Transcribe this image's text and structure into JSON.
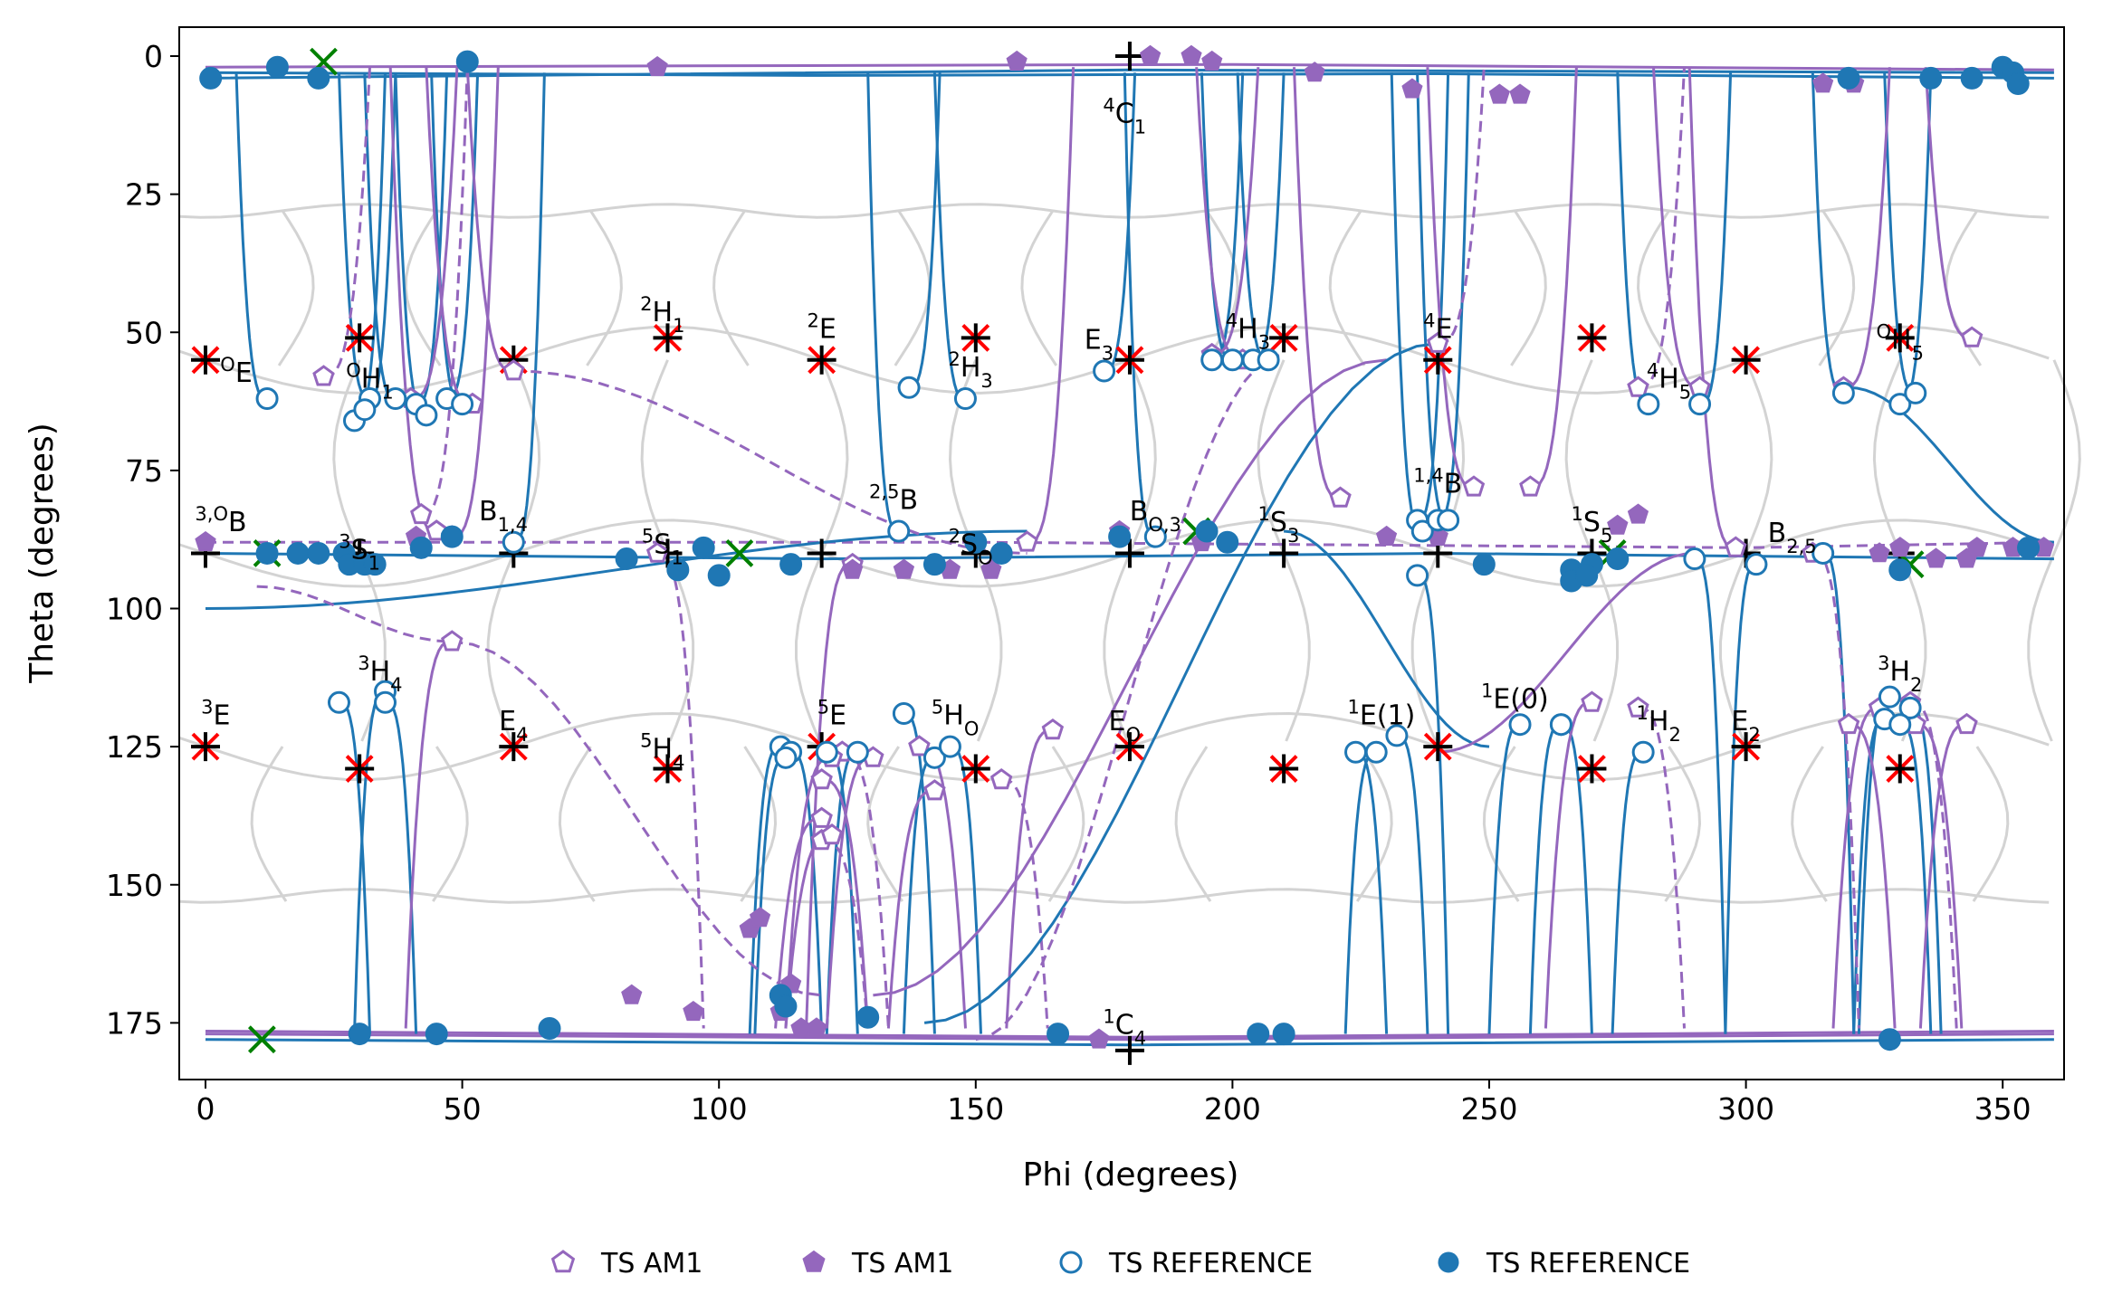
{
  "chart_data": {
    "type": "scatter",
    "xlabel": "Phi (degrees)",
    "ylabel": "Theta (degrees)",
    "xlim": [
      -5,
      362
    ],
    "ylim": [
      185,
      -5
    ],
    "xticks": [
      0,
      50,
      100,
      150,
      200,
      250,
      300,
      350
    ],
    "yticks": [
      0,
      25,
      50,
      75,
      100,
      125,
      150,
      175
    ],
    "grid": false,
    "legend_position": "bottom-center",
    "colors": {
      "am1": "#9467bd",
      "reference": "#1f77b4",
      "grid_mesh": "#d3d3d3",
      "canonical_plus": "#000000",
      "canonical_star": "#ff0000",
      "local_min": "#008000"
    },
    "legend": [
      {
        "label": "TS AM1",
        "marker": "open-pentagon",
        "color": "#9467bd"
      },
      {
        "label": "TS AM1",
        "marker": "filled-pentagon",
        "color": "#9467bd"
      },
      {
        "label": "TS REFERENCE",
        "marker": "open-circle",
        "color": "#1f77b4"
      },
      {
        "label": "TS REFERENCE",
        "marker": "filled-circle",
        "color": "#1f77b4"
      }
    ],
    "pucker_labels": [
      {
        "sup": "4",
        "base": "C",
        "sub": "1",
        "phi": 179,
        "theta": 12
      },
      {
        "sup": "O",
        "base": "E",
        "sub": "",
        "phi": 6,
        "theta": 59
      },
      {
        "sup": "O",
        "base": "H",
        "sub": "1",
        "phi": 32,
        "theta": 60
      },
      {
        "sup": "2",
        "base": "H",
        "sub": "1",
        "phi": 89,
        "theta": 48
      },
      {
        "sup": "2",
        "base": "E",
        "sub": "",
        "phi": 120,
        "theta": 51
      },
      {
        "sup": "2",
        "base": "H",
        "sub": "3",
        "phi": 149,
        "theta": 58
      },
      {
        "sup": "",
        "base": "E",
        "sub": "3",
        "phi": 174,
        "theta": 53
      },
      {
        "sup": "4",
        "base": "H",
        "sub": "3",
        "phi": 203,
        "theta": 51
      },
      {
        "sup": "4",
        "base": "E",
        "sub": "",
        "phi": 240,
        "theta": 51
      },
      {
        "sup": "4",
        "base": "H",
        "sub": "5",
        "phi": 285,
        "theta": 60
      },
      {
        "sup": "O",
        "base": "H",
        "sub": "5",
        "phi": 330,
        "theta": 53
      },
      {
        "sup": "3,O",
        "base": "B",
        "sub": "",
        "phi": 3,
        "theta": 86
      },
      {
        "sup": "3",
        "base": "S",
        "sub": "1",
        "phi": 30,
        "theta": 91
      },
      {
        "sup": "",
        "base": "B",
        "sub": "1,4",
        "phi": 58,
        "theta": 84
      },
      {
        "sup": "5",
        "base": "S",
        "sub": "1",
        "phi": 89,
        "theta": 90
      },
      {
        "sup": "2,5",
        "base": "B",
        "sub": "",
        "phi": 134,
        "theta": 82
      },
      {
        "sup": "2",
        "base": "S",
        "sub": "O",
        "phi": 149,
        "theta": 90
      },
      {
        "sup": "",
        "base": "B",
        "sub": "O,3",
        "phi": 185,
        "theta": 84
      },
      {
        "sup": "1",
        "base": "S",
        "sub": "3",
        "phi": 209,
        "theta": 86
      },
      {
        "sup": "1,4",
        "base": "B",
        "sub": "",
        "phi": 240,
        "theta": 79
      },
      {
        "sup": "1",
        "base": "S",
        "sub": "5",
        "phi": 270,
        "theta": 86
      },
      {
        "sup": "",
        "base": "B",
        "sub": "2,5",
        "phi": 309,
        "theta": 88
      },
      {
        "sup": "3",
        "base": "H",
        "sub": "4",
        "phi": 34,
        "theta": 113
      },
      {
        "sup": "3",
        "base": "E",
        "sub": "",
        "phi": 2,
        "theta": 121
      },
      {
        "sup": "",
        "base": "E",
        "sub": "4",
        "phi": 60,
        "theta": 122
      },
      {
        "sup": "5",
        "base": "H",
        "sub": "4",
        "phi": 89,
        "theta": 127
      },
      {
        "sup": "5",
        "base": "E",
        "sub": "",
        "phi": 122,
        "theta": 121
      },
      {
        "sup": "5",
        "base": "H",
        "sub": "O",
        "phi": 146,
        "theta": 121
      },
      {
        "sup": "",
        "base": "E",
        "sub": "O",
        "phi": 179,
        "theta": 122
      },
      {
        "sup": "1",
        "base": "E(1)",
        "sub": "",
        "phi": 229,
        "theta": 121
      },
      {
        "sup": "1",
        "base": "E(0)",
        "sub": "",
        "phi": 255,
        "theta": 118
      },
      {
        "sup": "1",
        "base": "H",
        "sub": "2",
        "phi": 283,
        "theta": 122
      },
      {
        "sup": "",
        "base": "E",
        "sub": "2",
        "phi": 300,
        "theta": 122
      },
      {
        "sup": "3",
        "base": "H",
        "sub": "2",
        "phi": 330,
        "theta": 113
      },
      {
        "sup": "1",
        "base": "C",
        "sub": "4",
        "phi": 179,
        "theta": 177
      }
    ],
    "canonical_plus": [
      [
        180,
        0
      ],
      [
        180,
        180
      ],
      [
        0,
        90
      ],
      [
        30,
        90
      ],
      [
        60,
        90
      ],
      [
        90,
        90
      ],
      [
        120,
        90
      ],
      [
        150,
        90
      ],
      [
        180,
        90
      ],
      [
        210,
        90
      ],
      [
        240,
        90
      ],
      [
        270,
        90
      ],
      [
        300,
        90
      ],
      [
        330,
        90
      ]
    ],
    "canonical_star": [
      [
        0,
        55
      ],
      [
        60,
        55
      ],
      [
        120,
        55
      ],
      [
        180,
        55
      ],
      [
        240,
        55
      ],
      [
        300,
        55
      ],
      [
        30,
        51
      ],
      [
        90,
        51
      ],
      [
        150,
        51
      ],
      [
        210,
        51
      ],
      [
        270,
        51
      ],
      [
        330,
        51
      ],
      [
        0,
        125
      ],
      [
        60,
        125
      ],
      [
        120,
        125
      ],
      [
        180,
        125
      ],
      [
        240,
        125
      ],
      [
        300,
        125
      ],
      [
        30,
        129
      ],
      [
        90,
        129
      ],
      [
        150,
        129
      ],
      [
        210,
        129
      ],
      [
        270,
        129
      ],
      [
        330,
        129
      ]
    ],
    "local_min": [
      [
        23,
        1
      ],
      [
        12,
        90
      ],
      [
        104,
        90
      ],
      [
        11,
        178
      ],
      [
        193,
        86
      ],
      [
        274,
        90
      ],
      [
        332,
        92
      ]
    ],
    "series": [
      {
        "name": "TS AM1",
        "marker": "open-pentagon",
        "points": [
          [
            23,
            58
          ],
          [
            60,
            57
          ],
          [
            40,
            62
          ],
          [
            52,
            63
          ],
          [
            42,
            83
          ],
          [
            45,
            86
          ],
          [
            48,
            87
          ],
          [
            48,
            106
          ],
          [
            88,
            90
          ],
          [
            126,
            92
          ],
          [
            160,
            88
          ],
          [
            165,
            122
          ],
          [
            155,
            131
          ],
          [
            142,
            133
          ],
          [
            139,
            125
          ],
          [
            130,
            127
          ],
          [
            124,
            126
          ],
          [
            122,
            127
          ],
          [
            120,
            131
          ],
          [
            120,
            138
          ],
          [
            120,
            142
          ],
          [
            122,
            141
          ],
          [
            196,
            54
          ],
          [
            202,
            55
          ],
          [
            240,
            52
          ],
          [
            247,
            78
          ],
          [
            258,
            78
          ],
          [
            221,
            80
          ],
          [
            279,
            60
          ],
          [
            291,
            60
          ],
          [
            319,
            60
          ],
          [
            344,
            51
          ],
          [
            279,
            118
          ],
          [
            270,
            117
          ],
          [
            320,
            121
          ],
          [
            326,
            118
          ],
          [
            332,
            117
          ],
          [
            343,
            121
          ],
          [
            333,
            121
          ],
          [
            298,
            89
          ],
          [
            313,
            90
          ]
        ]
      },
      {
        "name": "TS AM1",
        "marker": "filled-pentagon",
        "points": [
          [
            0,
            88
          ],
          [
            41,
            87
          ],
          [
            178,
            86
          ],
          [
            194,
            88
          ],
          [
            275,
            85
          ],
          [
            279,
            83
          ],
          [
            352,
            89
          ],
          [
            326,
            90
          ],
          [
            330,
            89
          ],
          [
            337,
            91
          ],
          [
            343,
            91
          ],
          [
            345,
            89
          ],
          [
            358,
            89
          ],
          [
            153,
            93
          ],
          [
            145,
            93
          ],
          [
            136,
            93
          ],
          [
            126,
            93
          ],
          [
            230,
            87
          ],
          [
            240,
            87
          ],
          [
            106,
            158
          ],
          [
            108,
            156
          ],
          [
            83,
            170
          ],
          [
            95,
            173
          ],
          [
            114,
            168
          ],
          [
            112,
            173
          ],
          [
            184,
            0
          ],
          [
            192,
            0
          ],
          [
            196,
            1
          ],
          [
            158,
            1
          ],
          [
            88,
            2
          ],
          [
            216,
            3
          ],
          [
            235,
            6
          ],
          [
            252,
            7
          ],
          [
            256,
            7
          ],
          [
            315,
            5
          ],
          [
            321,
            5
          ],
          [
            116,
            176
          ],
          [
            119,
            176
          ],
          [
            174,
            178
          ]
        ]
      },
      {
        "name": "TS REFERENCE",
        "marker": "open-circle",
        "points": [
          [
            12,
            62
          ],
          [
            29,
            66
          ],
          [
            32,
            62
          ],
          [
            31,
            64
          ],
          [
            37,
            62
          ],
          [
            41,
            63
          ],
          [
            43,
            65
          ],
          [
            47,
            62
          ],
          [
            50,
            63
          ],
          [
            60,
            88
          ],
          [
            135,
            86
          ],
          [
            137,
            60
          ],
          [
            148,
            62
          ],
          [
            175,
            57
          ],
          [
            185,
            87
          ],
          [
            196,
            55
          ],
          [
            200,
            55
          ],
          [
            204,
            55
          ],
          [
            207,
            55
          ],
          [
            236,
            84
          ],
          [
            237,
            86
          ],
          [
            240,
            84
          ],
          [
            242,
            84
          ],
          [
            236,
            94
          ],
          [
            264,
            121
          ],
          [
            264,
            121
          ],
          [
            256,
            121
          ],
          [
            224,
            126
          ],
          [
            228,
            126
          ],
          [
            232,
            123
          ],
          [
            281,
            63
          ],
          [
            291,
            63
          ],
          [
            319,
            61
          ],
          [
            330,
            63
          ],
          [
            333,
            61
          ],
          [
            290,
            91
          ],
          [
            302,
            92
          ],
          [
            315,
            90
          ],
          [
            328,
            116
          ],
          [
            332,
            118
          ],
          [
            327,
            120
          ],
          [
            330,
            121
          ],
          [
            280,
            126
          ],
          [
            26,
            117
          ],
          [
            35,
            115
          ],
          [
            35,
            117
          ],
          [
            112,
            125
          ],
          [
            114,
            126
          ],
          [
            113,
            127
          ],
          [
            121,
            126
          ],
          [
            127,
            126
          ],
          [
            136,
            119
          ],
          [
            142,
            127
          ],
          [
            145,
            125
          ]
        ]
      },
      {
        "name": "TS REFERENCE",
        "marker": "filled-circle",
        "points": [
          [
            1,
            4
          ],
          [
            14,
            2
          ],
          [
            22,
            4
          ],
          [
            51,
            1
          ],
          [
            350,
            2
          ],
          [
            352,
            3
          ],
          [
            320,
            4
          ],
          [
            336,
            4
          ],
          [
            344,
            4
          ],
          [
            353,
            5
          ],
          [
            12,
            90
          ],
          [
            18,
            90
          ],
          [
            22,
            90
          ],
          [
            27,
            90
          ],
          [
            28,
            92
          ],
          [
            31,
            92
          ],
          [
            33,
            92
          ],
          [
            42,
            89
          ],
          [
            48,
            87
          ],
          [
            82,
            91
          ],
          [
            92,
            93
          ],
          [
            97,
            89
          ],
          [
            100,
            94
          ],
          [
            114,
            92
          ],
          [
            142,
            92
          ],
          [
            150,
            88
          ],
          [
            155,
            90
          ],
          [
            178,
            87
          ],
          [
            195,
            86
          ],
          [
            199,
            88
          ],
          [
            249,
            92
          ],
          [
            266,
            93
          ],
          [
            270,
            92
          ],
          [
            266,
            95
          ],
          [
            269,
            94
          ],
          [
            275,
            91
          ],
          [
            330,
            93
          ],
          [
            355,
            89
          ],
          [
            30,
            177
          ],
          [
            45,
            177
          ],
          [
            67,
            176
          ],
          [
            166,
            177
          ],
          [
            205,
            177
          ],
          [
            210,
            177
          ],
          [
            129,
            174
          ],
          [
            112,
            170
          ],
          [
            113,
            172
          ],
          [
            328,
            178
          ]
        ]
      }
    ]
  }
}
